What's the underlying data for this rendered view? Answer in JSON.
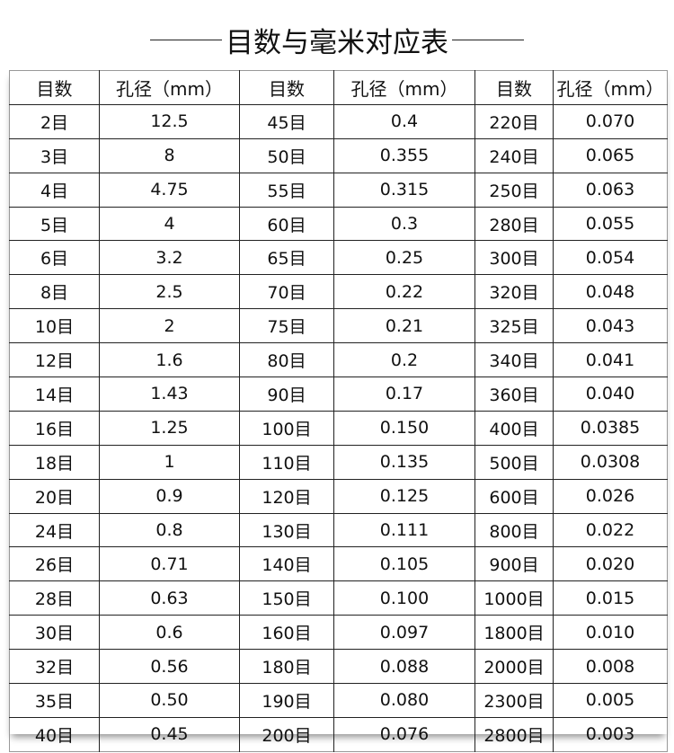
{
  "title": "目数与毫米对应表",
  "headers": [
    "目数",
    "孔径（mm）",
    "目数",
    "孔径（mm）",
    "目数",
    "孔径（mm）"
  ],
  "rows": [
    [
      "2目",
      "12.5",
      "45目",
      "0.4",
      "220目",
      "0.070"
    ],
    [
      "3目",
      "8",
      "50目",
      "0.355",
      "240目",
      "0.065"
    ],
    [
      "4目",
      "4.75",
      "55目",
      "0.315",
      "250目",
      "0.063"
    ],
    [
      "5目",
      "4",
      "60目",
      "0.3",
      "280目",
      "0.055"
    ],
    [
      "6目",
      "3.2",
      "65目",
      "0.25",
      "300目",
      "0.054"
    ],
    [
      "8目",
      "2.5",
      "70目",
      "0.22",
      "320目",
      "0.048"
    ],
    [
      "10目",
      "2",
      "75目",
      "0.21",
      "325目",
      "0.043"
    ],
    [
      "12目",
      "1.6",
      "80目",
      "0.2",
      "340目",
      "0.041"
    ],
    [
      "14目",
      "1.43",
      "90目",
      "0.17",
      "360目",
      "0.040"
    ],
    [
      "16目",
      "1.25",
      "100目",
      "0.150",
      "400目",
      "0.0385"
    ],
    [
      "18目",
      "1",
      "110目",
      "0.135",
      "500目",
      "0.0308"
    ],
    [
      "20目",
      "0.9",
      "120目",
      "0.125",
      "600目",
      "0.026"
    ],
    [
      "24目",
      "0.8",
      "130目",
      "0.111",
      "800目",
      "0.022"
    ],
    [
      "26目",
      "0.71",
      "140目",
      "0.105",
      "900目",
      "0.020"
    ],
    [
      "28目",
      "0.63",
      "150目",
      "0.100",
      "1000目",
      "0.015"
    ],
    [
      "30目",
      "0.6",
      "160目",
      "0.097",
      "1800目",
      "0.010"
    ],
    [
      "32目",
      "0.56",
      "180目",
      "0.088",
      "2000目",
      "0.008"
    ],
    [
      "35目",
      "0.50",
      "190目",
      "0.080",
      "2300目",
      "0.005"
    ],
    [
      "40目",
      "0.45",
      "200目",
      "0.076",
      "2800目",
      "0.003"
    ]
  ]
}
